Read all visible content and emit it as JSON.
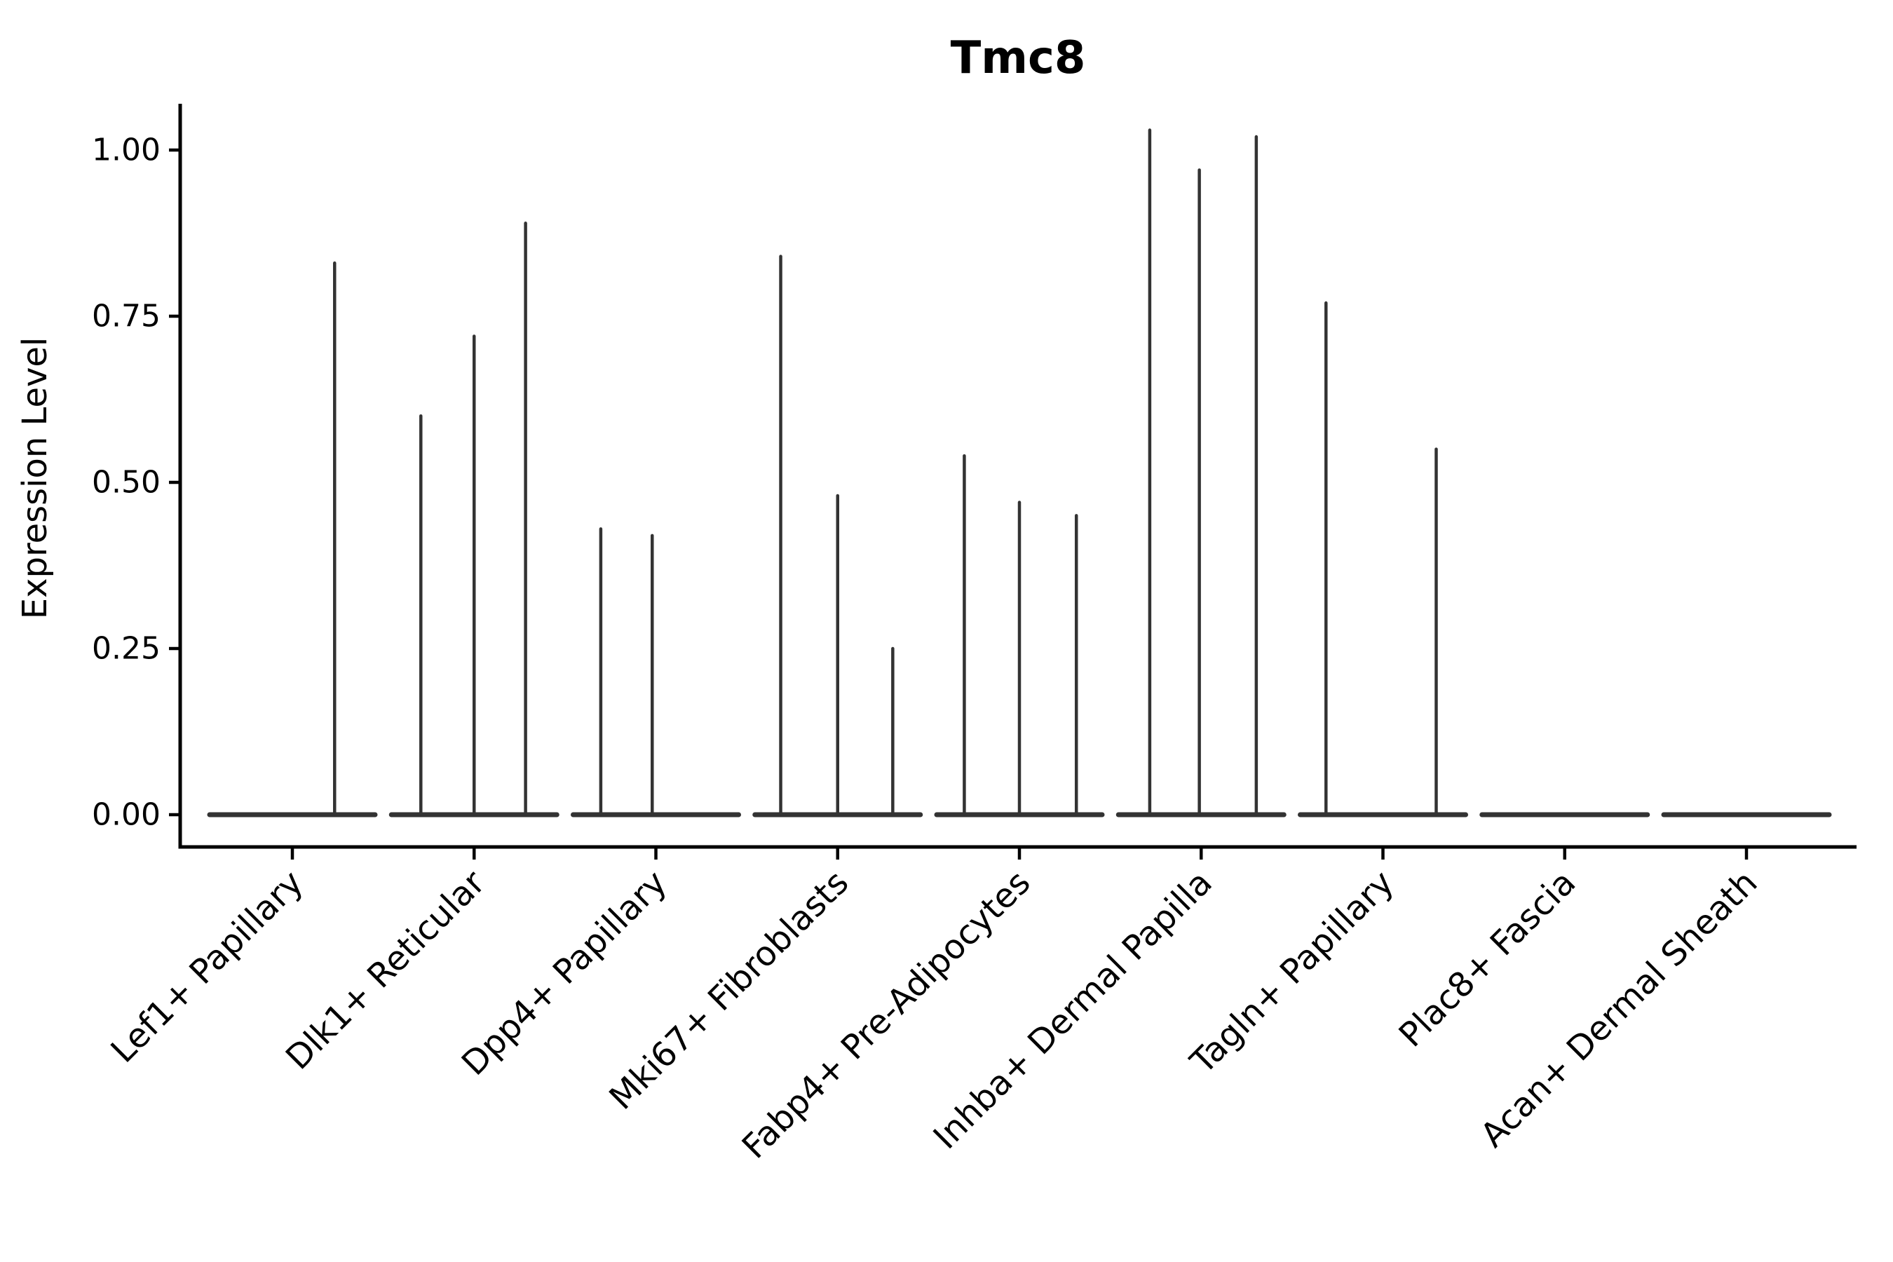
{
  "figure": {
    "title": "Tmc8",
    "y_axis_label": "Expression Level",
    "colors": {
      "violin_line": "#333333",
      "axis": "#000000",
      "background": "#ffffff"
    }
  },
  "chart_data": {
    "type": "violin",
    "title": "Tmc8",
    "xlabel": "",
    "ylabel": "Expression Level",
    "ylim": [
      -0.05,
      1.07
    ],
    "yticks": [
      0.0,
      0.25,
      0.5,
      0.75,
      1.0
    ],
    "ytick_labels": [
      "0.00",
      "0.25",
      "0.50",
      "0.75",
      "1.00"
    ],
    "grid": false,
    "legend": null,
    "x_tick_rotation_degrees": 45,
    "categories": [
      "Lef1+ Papillary",
      "Dlk1+ Reticular",
      "Dpp4+ Papillary",
      "Mki67+ Fibroblasts",
      "Fabp4+ Pre-Adipocytes",
      "Inhba+ Dermal Papilla",
      "Tagln+ Papillary",
      "Plac8+ Fascia",
      "Acan+ Dermal Sheath"
    ],
    "description": "Violin plot of Tmc8 expression per fibroblast cell type; each violin is flattened at 0 with thin density spikes rising to the maxima below.",
    "violins": [
      {
        "category": "Lef1+ Papillary",
        "baseline_value": 0,
        "spikes": [
          {
            "offset": 0.23,
            "value": 0.83
          }
        ]
      },
      {
        "category": "Dlk1+ Reticular",
        "baseline_value": 0,
        "spikes": [
          {
            "offset": -0.29,
            "value": 0.6
          },
          {
            "offset": 0.0,
            "value": 0.72
          },
          {
            "offset": 0.28,
            "value": 0.89
          }
        ]
      },
      {
        "category": "Dpp4+ Papillary",
        "baseline_value": 0,
        "spikes": [
          {
            "offset": -0.3,
            "value": 0.43
          },
          {
            "offset": -0.02,
            "value": 0.42
          }
        ]
      },
      {
        "category": "Mki67+ Fibroblasts",
        "baseline_value": 0,
        "spikes": [
          {
            "offset": -0.31,
            "value": 0.84
          },
          {
            "offset": 0.0,
            "value": 0.48
          },
          {
            "offset": 0.3,
            "value": 0.25
          }
        ]
      },
      {
        "category": "Fabp4+ Pre-Adipocytes",
        "baseline_value": 0,
        "spikes": [
          {
            "offset": -0.3,
            "value": 0.54
          },
          {
            "offset": 0.0,
            "value": 0.47
          },
          {
            "offset": 0.31,
            "value": 0.45
          }
        ]
      },
      {
        "category": "Inhba+ Dermal Papilla",
        "baseline_value": 0,
        "spikes": [
          {
            "offset": -0.28,
            "value": 1.03
          },
          {
            "offset": -0.01,
            "value": 0.97
          },
          {
            "offset": 0.3,
            "value": 1.02
          }
        ]
      },
      {
        "category": "Tagln+ Papillary",
        "baseline_value": 0,
        "spikes": [
          {
            "offset": -0.31,
            "value": 0.77
          },
          {
            "offset": 0.29,
            "value": 0.55
          }
        ]
      },
      {
        "category": "Plac8+ Fascia",
        "baseline_value": 0,
        "spikes": []
      },
      {
        "category": "Acan+ Dermal Sheath",
        "baseline_value": 0,
        "spikes": []
      }
    ]
  }
}
